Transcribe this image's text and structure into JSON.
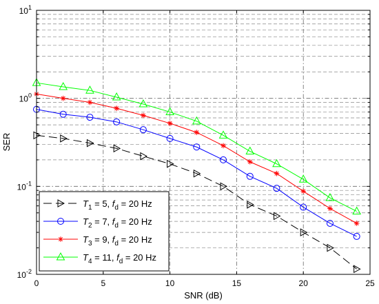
{
  "chart_data": {
    "type": "line",
    "xlabel": "SNR (dB)",
    "ylabel": "SER",
    "xlim": [
      0,
      25
    ],
    "ylim": [
      0.01,
      10
    ],
    "yscale": "log",
    "grid": true,
    "legend_position": "bottom-left",
    "x_ticks": [
      "0",
      "5",
      "10",
      "15",
      "20",
      "25"
    ],
    "y_ticks": [
      {
        "base": "10",
        "exp": "-2",
        "value": 0.01
      },
      {
        "base": "10",
        "exp": "-1",
        "value": 0.1
      },
      {
        "base": "10",
        "exp": "0",
        "value": 1
      },
      {
        "base": "10",
        "exp": "1",
        "value": 10
      }
    ],
    "x": [
      0,
      2,
      4,
      6,
      8,
      10,
      12,
      14,
      16,
      18,
      20,
      22,
      24
    ],
    "series": [
      {
        "legend": {
          "T": "T",
          "sub": "1",
          "mid": " = 5, ",
          "f": "f",
          "fsub": "d",
          "tail": " = 20 Hz"
        },
        "color": "#000000",
        "marker": "triangle-right",
        "dash": "dashed",
        "values": [
          0.38,
          0.35,
          0.31,
          0.27,
          0.22,
          0.18,
          0.14,
          0.1,
          0.062,
          0.046,
          0.03,
          0.02,
          0.0115
        ]
      },
      {
        "legend": {
          "T": "T",
          "sub": "2",
          "mid": " = 7, ",
          "f": "f",
          "fsub": "d",
          "tail": " = 20 Hz"
        },
        "color": "#0000ff",
        "marker": "circle",
        "dash": "solid",
        "values": [
          0.75,
          0.66,
          0.61,
          0.54,
          0.44,
          0.35,
          0.28,
          0.2,
          0.13,
          0.095,
          0.058,
          0.038,
          0.027
        ]
      },
      {
        "legend": {
          "T": "T",
          "sub": "3",
          "mid": " = 9, ",
          "f": "f",
          "fsub": "d",
          "tail": " = 20 Hz"
        },
        "color": "#ff0000",
        "marker": "asterisk",
        "dash": "solid",
        "values": [
          1.12,
          1.0,
          0.9,
          0.77,
          0.64,
          0.52,
          0.41,
          0.29,
          0.19,
          0.14,
          0.088,
          0.056,
          0.038
        ]
      },
      {
        "legend": {
          "T": "T",
          "sub": "4",
          "mid": " = 11, ",
          "f": "f",
          "fsub": "d",
          "tail": " = 20 Hz"
        },
        "color": "#00ff00",
        "marker": "triangle-up",
        "dash": "solid",
        "values": [
          1.5,
          1.35,
          1.23,
          1.03,
          0.86,
          0.7,
          0.55,
          0.38,
          0.25,
          0.18,
          0.12,
          0.074,
          0.052
        ]
      }
    ]
  }
}
